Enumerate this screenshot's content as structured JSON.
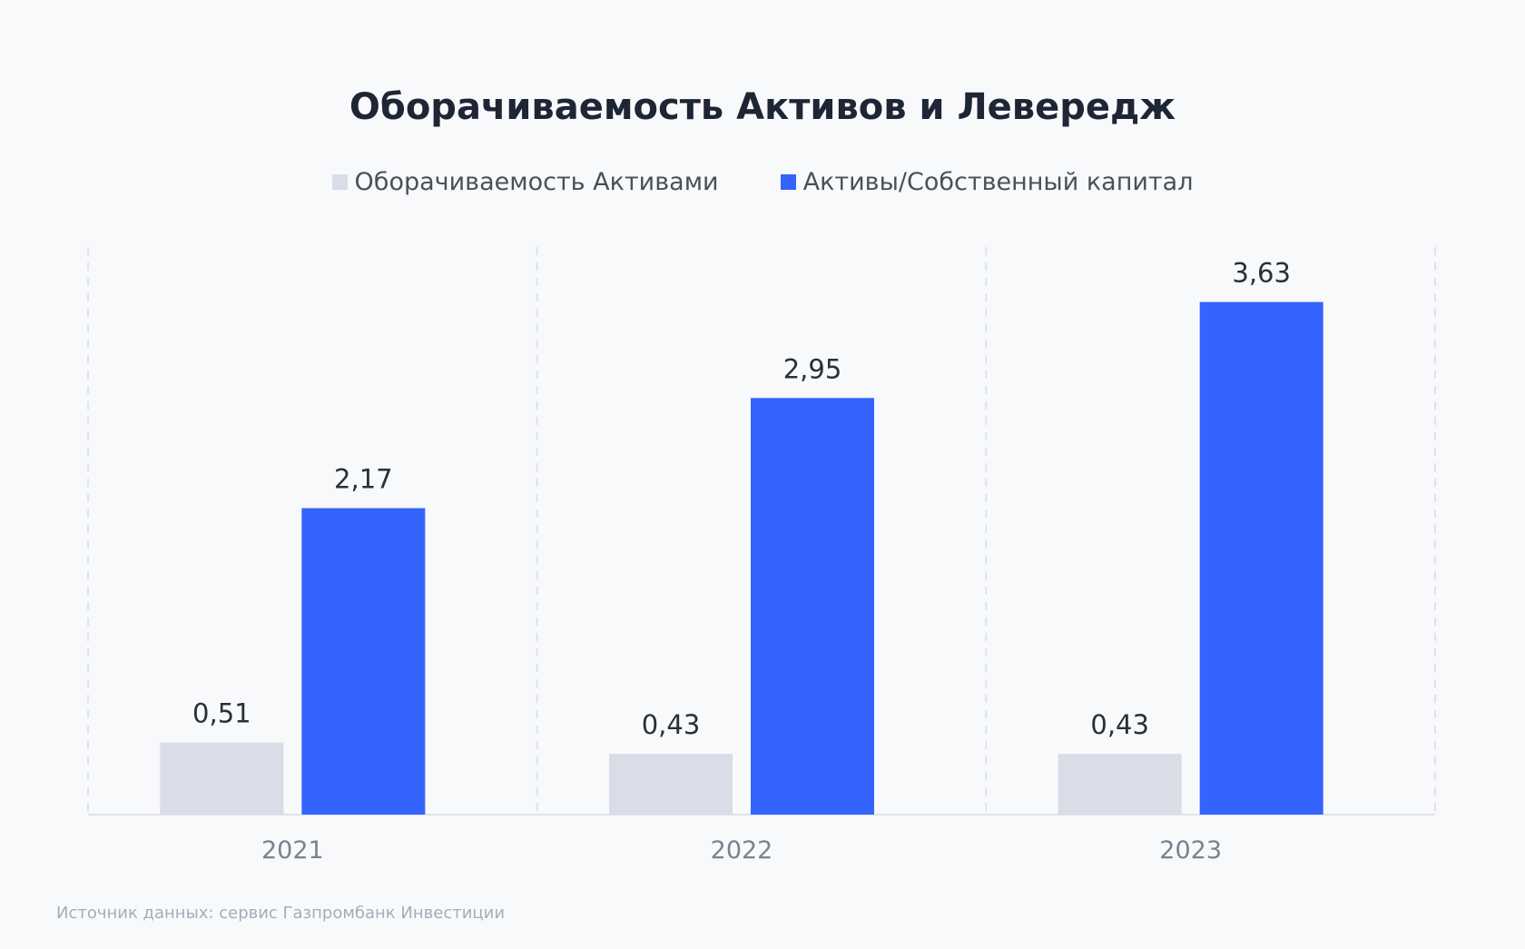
{
  "chart_data": {
    "type": "bar",
    "title": "Оборачиваемость Активов и Левередж",
    "categories": [
      "2021",
      "2022",
      "2023"
    ],
    "series": [
      {
        "name": "Оборачиваемость Активами",
        "values": [
          0.51,
          0.43,
          0.43
        ],
        "labels": [
          "0,51",
          "0,43",
          "0,43"
        ],
        "color": "#d8dde8"
      },
      {
        "name": "Активы/Собственный капитал",
        "values": [
          2.17,
          2.95,
          3.63
        ],
        "labels": [
          "2,17",
          "2,95",
          "3,63"
        ],
        "color": "#3563fd"
      }
    ],
    "xlabel": "",
    "ylabel": "",
    "ylim": [
      0,
      4
    ],
    "grid": "vertical dashed separators",
    "legend_position": "top-center"
  },
  "footer": {
    "source": "Источник данных: сервис Газпромбанк Инвестиции"
  },
  "colors": {
    "background": "#f8f9fb",
    "title": "#1e2535",
    "axis": "#dfe2e8",
    "tick_label": "#7b8190",
    "value_label": "#2b2f38"
  }
}
